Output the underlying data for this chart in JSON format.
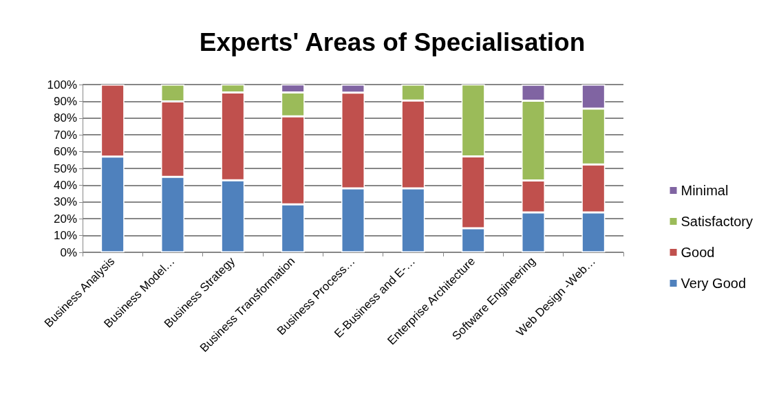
{
  "chart_data": {
    "type": "bar",
    "title": "Experts' Areas of Specialisation",
    "stacked": true,
    "categories": [
      "Business Analysis",
      "Business Model…",
      "Business Strategy",
      "Business Transformation",
      "Business Process…",
      "E-Business and E-…",
      "Enterprise Architecture",
      "Software Engineering",
      "Web Design -Web…"
    ],
    "series": [
      {
        "name": "Very Good",
        "color": "#4f81bd",
        "values": [
          57.1,
          45,
          42.9,
          28.6,
          38.1,
          38.1,
          14.3,
          23.8,
          23.8
        ]
      },
      {
        "name": "Good",
        "color": "#c0504d",
        "values": [
          42.9,
          45,
          52.4,
          52.4,
          57.1,
          52.4,
          42.9,
          19.0,
          28.6
        ]
      },
      {
        "name": "Satisfactory",
        "color": "#9bbb59",
        "values": [
          null,
          10,
          4.8,
          14.3,
          null,
          9.5,
          42.9,
          47.6,
          33.3
        ]
      },
      {
        "name": "Minimal",
        "color": "#8064a2",
        "values": [
          null,
          null,
          null,
          4.8,
          4.8,
          null,
          null,
          9.5,
          14.3
        ]
      }
    ],
    "ylim": [
      0,
      100
    ],
    "yticks": [
      {
        "value": 0,
        "label": "0%"
      },
      {
        "value": 10,
        "label": "10%"
      },
      {
        "value": 20,
        "label": "20%"
      },
      {
        "value": 30,
        "label": "30%"
      },
      {
        "value": 40,
        "label": "40%"
      },
      {
        "value": 50,
        "label": "50%"
      },
      {
        "value": 60,
        "label": "60%"
      },
      {
        "value": 70,
        "label": "70%"
      },
      {
        "value": 80,
        "label": "80%"
      },
      {
        "value": 90,
        "label": "90%"
      },
      {
        "value": 100,
        "label": "100%"
      }
    ],
    "grid": "y",
    "legend": "right"
  }
}
